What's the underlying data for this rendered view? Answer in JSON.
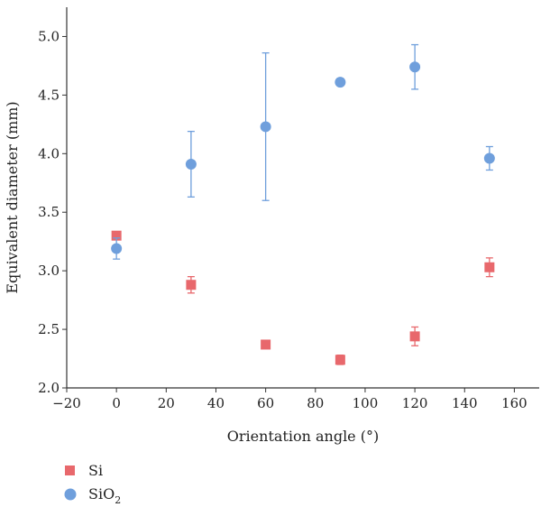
{
  "chart_data": {
    "type": "scatter",
    "xlabel": "Orientation angle (°)",
    "ylabel": "Equivalent diameter (mm)",
    "xlim": [
      -20,
      170
    ],
    "ylim": [
      2.0,
      5.25
    ],
    "xticks": [
      -20,
      0,
      20,
      40,
      60,
      80,
      100,
      120,
      140,
      160
    ],
    "yticks": [
      2.0,
      2.5,
      3.0,
      3.5,
      4.0,
      4.5,
      5.0
    ],
    "grid": false,
    "legend_position": "bottom-left",
    "series": [
      {
        "name": "Si",
        "marker": "square",
        "color": "#e8686c",
        "points": [
          {
            "x": 0,
            "y": 3.3,
            "err": 0.03
          },
          {
            "x": 30,
            "y": 2.88,
            "err": 0.07
          },
          {
            "x": 60,
            "y": 2.37,
            "err": 0.03
          },
          {
            "x": 90,
            "y": 2.24,
            "err": 0.04
          },
          {
            "x": 120,
            "y": 2.44,
            "err": 0.08
          },
          {
            "x": 150,
            "y": 3.03,
            "err": 0.08
          }
        ]
      },
      {
        "name": "SiO2",
        "label_base": "SiO",
        "label_sub": "2",
        "marker": "circle",
        "color": "#6f9fdc",
        "points": [
          {
            "x": 0,
            "y": 3.19,
            "err": 0.09
          },
          {
            "x": 30,
            "y": 3.91,
            "err": 0.28
          },
          {
            "x": 60,
            "y": 4.23,
            "err": 0.63
          },
          {
            "x": 90,
            "y": 4.61,
            "err": 0.03
          },
          {
            "x": 120,
            "y": 4.74,
            "err": 0.19
          },
          {
            "x": 150,
            "y": 3.96,
            "err": 0.1
          }
        ]
      }
    ]
  }
}
